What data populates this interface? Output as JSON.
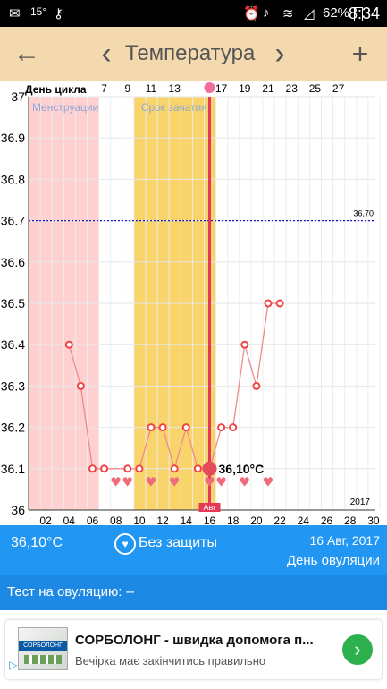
{
  "status": {
    "temp": "15°",
    "battery": "62%",
    "time": "8:34"
  },
  "header": {
    "title": "Температура",
    "back_icon": "←",
    "prev_icon": "‹",
    "next_icon": "›",
    "add_icon": "+"
  },
  "chart": {
    "cycle_label": "День цикла",
    "cycle_days": [
      "7",
      "9",
      "11",
      "13",
      "",
      "17",
      "19",
      "21",
      "23",
      "25",
      "27"
    ],
    "menstruation_label": "Менструации",
    "conception_label": "Срок зачатия",
    "coverline_label": "36,70",
    "current_label": "36,10°C",
    "month_label": "Авг",
    "year_label": "2017",
    "y_ticks": [
      "37",
      "36.9",
      "36.8",
      "36.7",
      "36.6",
      "36.5",
      "36.4",
      "36.3",
      "36.2",
      "36.1",
      "36"
    ],
    "x_ticks": [
      "02",
      "04",
      "06",
      "08",
      "10",
      "12",
      "14",
      "16",
      "18",
      "20",
      "22",
      "24",
      "26",
      "28",
      "30"
    ]
  },
  "chart_data": {
    "type": "line",
    "x": [
      4,
      5,
      6,
      7,
      8,
      9,
      10,
      11,
      12,
      13,
      14,
      15,
      16,
      17,
      18,
      19,
      20,
      21,
      22
    ],
    "values": [
      36.4,
      36.3,
      36.1,
      36.1,
      null,
      36.1,
      36.1,
      36.2,
      36.2,
      36.1,
      36.2,
      36.1,
      36.1,
      36.2,
      36.2,
      36.4,
      36.3,
      36.5,
      36.5
    ],
    "hearts": [
      8,
      9,
      11,
      13,
      16,
      17,
      19,
      21
    ],
    "ylim": [
      36.0,
      37.0
    ],
    "xlim": [
      1,
      31
    ],
    "coverline": 36.7,
    "ovulation_day": 16,
    "menstruation_days": [
      1,
      6
    ],
    "conception_days": [
      10,
      16
    ],
    "colors": {
      "line": "#f08a8a",
      "menstruation": "#ffd0d0",
      "conception": "#f9d46b",
      "ovulation": "#e53956",
      "coverline": "#1a1ad0"
    }
  },
  "info": {
    "temp": "36,10°C",
    "protection": "Без защиты",
    "heart_icon": "♥",
    "date": "16 Авг, 2017",
    "ovulation": "День овуляции"
  },
  "test": {
    "label": "Тест на овуляцию: --"
  },
  "ad": {
    "band": "СОРБОЛОНГ",
    "title": "СОРБОЛОНГ - швидка допомога п...",
    "subtitle": "Вечірка має закінчитись правильно",
    "go_icon": "›"
  }
}
